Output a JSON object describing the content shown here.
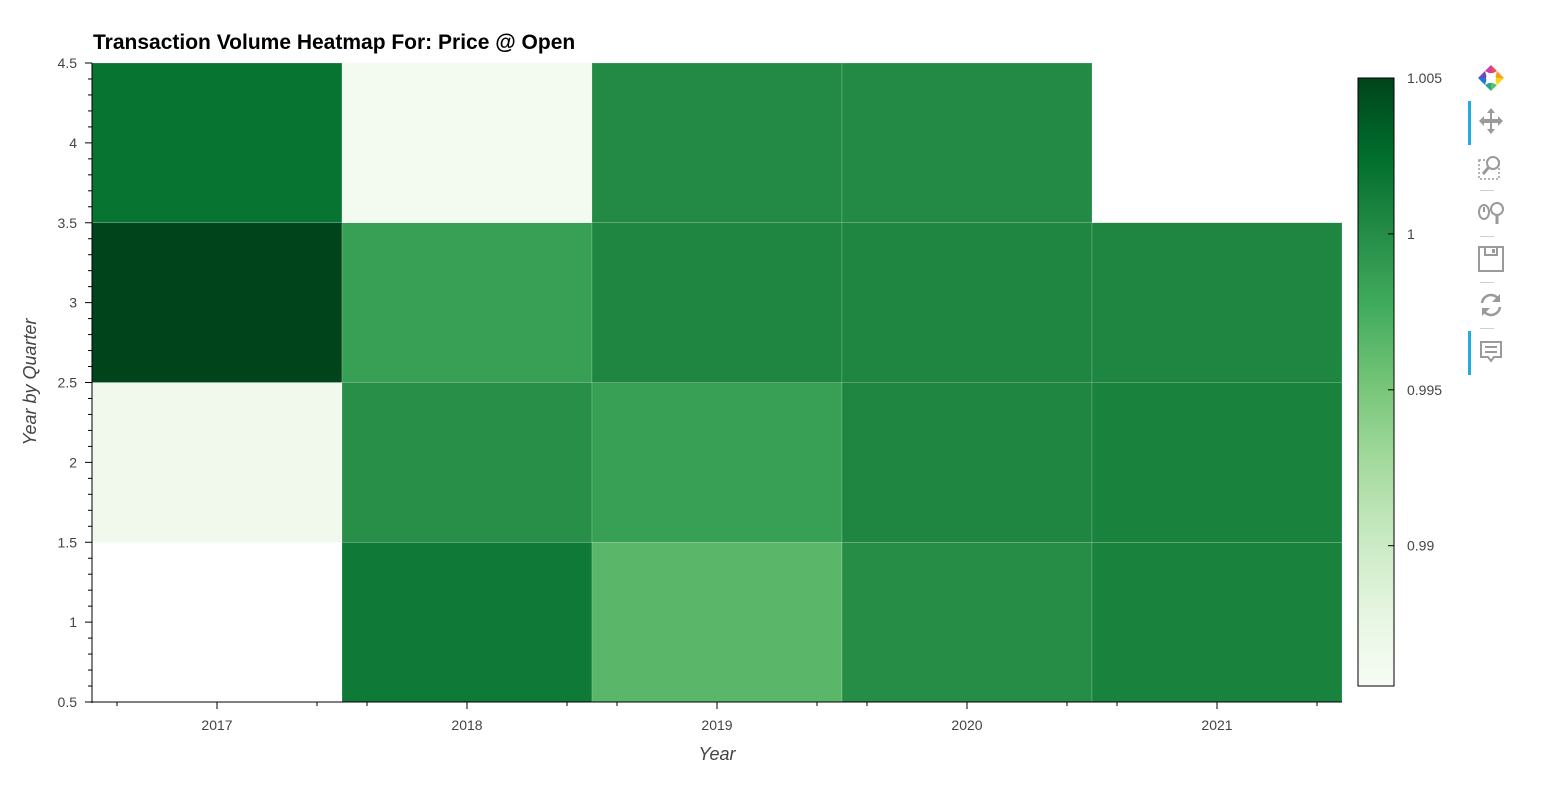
{
  "chart_data": {
    "type": "heatmap",
    "title": "Transaction Volume Heatmap For: Price @ Open",
    "xlabel": "Year",
    "ylabel": "Year by Quarter",
    "x_categories": [
      "2017",
      "2018",
      "2019",
      "2020",
      "2021"
    ],
    "ylim": [
      0.5,
      4.5
    ],
    "y_ticks": [
      "0.5",
      "1",
      "1.5",
      "2",
      "2.5",
      "3",
      "3.5",
      "4",
      "4.5"
    ],
    "colorbar": {
      "colormap": "Greens",
      "min": 0.9855,
      "max": 1.005,
      "ticks": [
        "0.99",
        "0.995",
        "1",
        "1.005"
      ]
    },
    "cells": [
      {
        "x": "2017",
        "quarter": 2,
        "value": 0.9865
      },
      {
        "x": "2017",
        "quarter": 3,
        "value": 1.005
      },
      {
        "x": "2017",
        "quarter": 4,
        "value": 1.002
      },
      {
        "x": "2018",
        "quarter": 1,
        "value": 1.0015
      },
      {
        "x": "2018",
        "quarter": 2,
        "value": 0.9998
      },
      {
        "x": "2018",
        "quarter": 3,
        "value": 0.9985
      },
      {
        "x": "2018",
        "quarter": 4,
        "value": 0.986
      },
      {
        "x": "2019",
        "quarter": 1,
        "value": 0.9965
      },
      {
        "x": "2019",
        "quarter": 2,
        "value": 0.9985
      },
      {
        "x": "2019",
        "quarter": 3,
        "value": 1.0005
      },
      {
        "x": "2019",
        "quarter": 4,
        "value": 1.0002
      },
      {
        "x": "2020",
        "quarter": 1,
        "value": 1.0
      },
      {
        "x": "2020",
        "quarter": 2,
        "value": 1.0005
      },
      {
        "x": "2020",
        "quarter": 3,
        "value": 1.0005
      },
      {
        "x": "2020",
        "quarter": 4,
        "value": 1.0002
      },
      {
        "x": "2021",
        "quarter": 1,
        "value": 1.0008
      },
      {
        "x": "2021",
        "quarter": 2,
        "value": 1.0008
      },
      {
        "x": "2021",
        "quarter": 3,
        "value": 1.0005
      }
    ]
  },
  "toolbar": {
    "tools": [
      {
        "name": "bokeh-logo",
        "icon": "bokeh-logo-icon",
        "active": false
      },
      {
        "name": "pan",
        "icon": "pan-icon",
        "active": true
      },
      {
        "name": "box-zoom",
        "icon": "box-zoom-icon",
        "active": false
      },
      {
        "name": "wheel-zoom",
        "icon": "wheel-zoom-icon",
        "active": false
      },
      {
        "name": "save",
        "icon": "save-icon",
        "active": false
      },
      {
        "name": "reset",
        "icon": "reset-icon",
        "active": false
      },
      {
        "name": "hover",
        "icon": "hover-icon",
        "active": true
      }
    ],
    "accent": "#26aae1"
  }
}
